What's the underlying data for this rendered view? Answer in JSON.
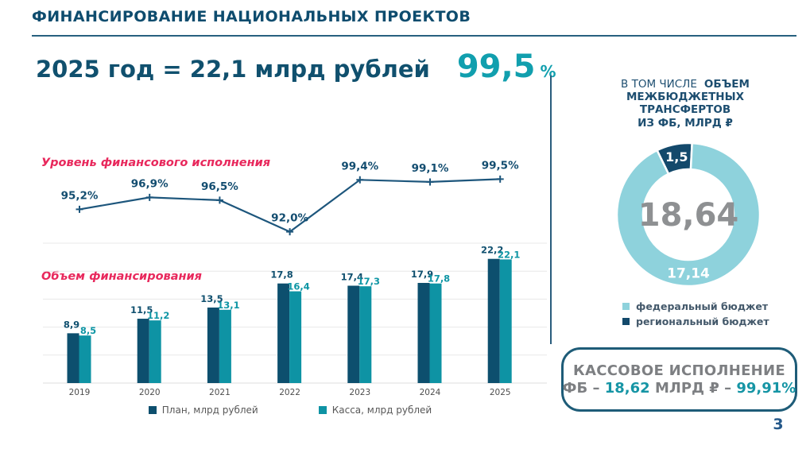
{
  "page_number": "3",
  "header": {
    "title": "ФИНАНСИРОВАНИЕ НАЦИОНАЛЬНЫХ ПРОЕКТОВ"
  },
  "headline": {
    "text": "2025 год = 22,1 млрд рублей",
    "percent": "99,5",
    "percent_sign": "%"
  },
  "colors": {
    "navy": "#10506e",
    "teal": "#119fae",
    "crimson": "#e8285c",
    "divider": "#2a5d7d",
    "gray_text": "#7d7f82"
  },
  "right_panel": {
    "header_prefix": "В ТОМ ЧИСЛЕ",
    "header_bold_line1": "ОБЪЕМ",
    "header_line2": "МЕЖБЮДЖЕТНЫХ",
    "header_line3": "ТРАНСФЕРТОВ",
    "header_line4": "ИЗ ФБ, МЛРД ₽"
  },
  "cash_box": {
    "line1": "КАССОВОЕ ИСПОЛНЕНИЕ",
    "part1": "ФБ – ",
    "part2": "18,62",
    "part3": " МЛРД ₽ – ",
    "part4": "99,91%"
  },
  "chart_data": [
    {
      "id": "execution-line",
      "type": "line",
      "title": "Уровень финансового исполнения",
      "x": [
        "2019",
        "2020",
        "2021",
        "2022",
        "2023",
        "2024",
        "2025"
      ],
      "values": [
        95.2,
        96.9,
        96.5,
        92.0,
        99.4,
        99.1,
        99.5
      ],
      "labels": [
        "95,2%",
        "96,9%",
        "96,5%",
        "92,0%",
        "99,4%",
        "99,1%",
        "99,5%"
      ],
      "ylim": [
        91.5,
        100
      ],
      "grid": false,
      "legend_position": "none",
      "line_color": "#1d567c"
    },
    {
      "id": "financing-bars",
      "type": "bar",
      "title": "Объем финансирования",
      "categories": [
        "2019",
        "2020",
        "2021",
        "2022",
        "2023",
        "2024",
        "2025"
      ],
      "series": [
        {
          "name": "План, млрд рублей",
          "color": "#0d4f6e",
          "values": [
            8.9,
            11.5,
            13.5,
            17.8,
            17.4,
            17.9,
            22.2
          ],
          "labels": [
            "8,9",
            "11,5",
            "13,5",
            "17,8",
            "17,4",
            "17,9",
            "22,2"
          ]
        },
        {
          "name": "Касса, млрд рублей",
          "color": "#0e93a4",
          "values": [
            8.5,
            11.2,
            13.1,
            16.4,
            17.3,
            17.8,
            22.1
          ],
          "labels": [
            "8,5",
            "11,2",
            "13,1",
            "16,4",
            "17,3",
            "17,8",
            "22,1"
          ]
        }
      ],
      "ylim": [
        0,
        25
      ],
      "grid": true,
      "legend_position": "bottom"
    },
    {
      "id": "transfers-donut",
      "type": "pie",
      "title": "В ТОМ ЧИСЛЕ ОБЪЕМ МЕЖБЮДЖЕТНЫХ ТРАНСФЕРТОВ ИЗ ФБ, МЛРД ₽",
      "center_label": "18,64",
      "total": 18.64,
      "slices": [
        {
          "name": "региональный бюджет",
          "value": 1.5,
          "label": "1,5",
          "color": "#13496b"
        },
        {
          "name": "федеральный бюджет",
          "value": 17.14,
          "label": "17,14",
          "color": "#8ed2dc"
        }
      ],
      "legend_position": "bottom"
    }
  ]
}
